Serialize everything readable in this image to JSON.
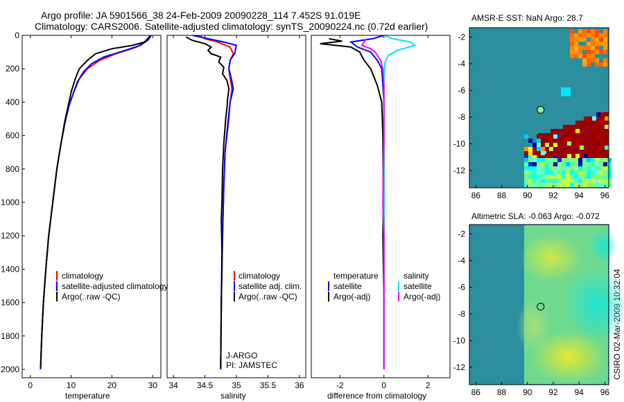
{
  "header": {
    "line1": "Argo profile: JA 5901566_38 24-Feb-2009 20090228_114 7.452S 91.019E",
    "line2": "Climatology: CARS2006. Satellite-adjusted climatology: synTS_20090224.nc (0.72d earlier)"
  },
  "footer_credit": "CSIRO 02-Mar-2009 10:32:04",
  "colors": {
    "climatology": "#ff0000",
    "satellite": "#0000ff",
    "argo": "#000000",
    "sal_satellite": "#00e5ee",
    "sal_argo": "#ff00ff",
    "map_bg": "#2b8fa0"
  },
  "chart_data": [
    {
      "id": "temperature",
      "type": "line",
      "xlabel": "temperature",
      "xlim": [
        -2,
        32
      ],
      "ylim": [
        2050,
        0
      ],
      "xticks": [
        0,
        10,
        20,
        30
      ],
      "yticks": [
        0,
        200,
        400,
        600,
        800,
        1000,
        1200,
        1400,
        1600,
        1800,
        2000
      ],
      "legend": [
        "climatology",
        "satellite-adjusted climatology",
        "Argo(..raw -QC)"
      ],
      "series": [
        {
          "name": "climatology",
          "color": "#ff0000",
          "points": [
            [
              29.5,
              0
            ],
            [
              28.8,
              30
            ],
            [
              26,
              70
            ],
            [
              21,
              110
            ],
            [
              17,
              150
            ],
            [
              14,
              200
            ],
            [
              12,
              260
            ],
            [
              10.5,
              350
            ],
            [
              9.5,
              420
            ],
            [
              8.5,
              520
            ],
            [
              7.5,
              650
            ],
            [
              6.5,
              800
            ],
            [
              5.5,
              1000
            ],
            [
              4.5,
              1200
            ],
            [
              3.8,
              1400
            ],
            [
              3.2,
              1600
            ],
            [
              2.8,
              1800
            ],
            [
              2.5,
              2000
            ]
          ]
        },
        {
          "name": "satellite-adjusted climatology",
          "color": "#0000ff",
          "points": [
            [
              29.6,
              0
            ],
            [
              29,
              25
            ],
            [
              27,
              60
            ],
            [
              22,
              100
            ],
            [
              18,
              130
            ],
            [
              15,
              170
            ],
            [
              13,
              220
            ],
            [
              11.5,
              280
            ],
            [
              10.5,
              350
            ],
            [
              9.5,
              420
            ],
            [
              8.5,
              520
            ],
            [
              7.5,
              650
            ],
            [
              6.5,
              800
            ],
            [
              5.5,
              1000
            ],
            [
              4.5,
              1200
            ],
            [
              3.8,
              1400
            ],
            [
              3.2,
              1600
            ],
            [
              2.8,
              1800
            ],
            [
              2.5,
              2000
            ]
          ]
        },
        {
          "name": "Argo(..raw -QC)",
          "color": "#000000",
          "points": [
            [
              29.3,
              5
            ],
            [
              28,
              40
            ],
            [
              25,
              60
            ],
            [
              20,
              80
            ],
            [
              16,
              110
            ],
            [
              14,
              150
            ],
            [
              12,
              200
            ],
            [
              11,
              260
            ],
            [
              10,
              340
            ],
            [
              9.3,
              420
            ],
            [
              8.4,
              520
            ],
            [
              7.5,
              650
            ],
            [
              6.5,
              800
            ],
            [
              5.5,
              1000
            ],
            [
              4.5,
              1200
            ],
            [
              3.8,
              1400
            ],
            [
              3.2,
              1600
            ],
            [
              2.8,
              1800
            ],
            [
              2.5,
              1990
            ]
          ]
        }
      ]
    },
    {
      "id": "salinity",
      "type": "line",
      "xlabel": "salinity",
      "xlim": [
        33.9,
        36.1
      ],
      "ylim": [
        2050,
        0
      ],
      "xticks": [
        34,
        34.5,
        35,
        35.5,
        36
      ],
      "legend": [
        "climatology",
        "satellite adj. clim.",
        "Argo(..raw -QC)"
      ],
      "annotations": [
        "J-ARGO",
        "PI: JAMSTEC"
      ],
      "series": [
        {
          "name": "climatology",
          "color": "#ff0000",
          "points": [
            [
              34.4,
              0
            ],
            [
              34.5,
              20
            ],
            [
              34.7,
              40
            ],
            [
              34.9,
              70
            ],
            [
              34.95,
              110
            ],
            [
              34.9,
              150
            ],
            [
              34.88,
              200
            ],
            [
              34.9,
              260
            ],
            [
              34.93,
              320
            ],
            [
              34.9,
              400
            ],
            [
              34.88,
              500
            ],
            [
              34.82,
              700
            ],
            [
              34.8,
              900
            ],
            [
              34.78,
              1200
            ],
            [
              34.76,
              1600
            ],
            [
              34.75,
              2000
            ]
          ]
        },
        {
          "name": "satellite adj. clim.",
          "color": "#0000ff",
          "points": [
            [
              34.3,
              0
            ],
            [
              34.55,
              20
            ],
            [
              34.8,
              40
            ],
            [
              35.0,
              60
            ],
            [
              34.97,
              110
            ],
            [
              34.9,
              150
            ],
            [
              34.88,
              200
            ],
            [
              34.92,
              260
            ],
            [
              34.95,
              320
            ],
            [
              34.9,
              400
            ],
            [
              34.87,
              500
            ],
            [
              34.82,
              700
            ],
            [
              34.8,
              900
            ],
            [
              34.78,
              1200
            ],
            [
              34.76,
              1600
            ],
            [
              34.75,
              2000
            ]
          ]
        },
        {
          "name": "Argo(..raw -QC)",
          "color": "#000000",
          "points": [
            [
              34.2,
              10
            ],
            [
              34.3,
              30
            ],
            [
              34.5,
              50
            ],
            [
              34.6,
              70
            ],
            [
              34.55,
              90
            ],
            [
              34.6,
              110
            ],
            [
              34.75,
              130
            ],
            [
              34.72,
              160
            ],
            [
              34.8,
              190
            ],
            [
              34.78,
              230
            ],
            [
              34.85,
              270
            ],
            [
              34.88,
              320
            ],
            [
              34.86,
              380
            ],
            [
              34.85,
              430
            ],
            [
              34.83,
              500
            ],
            [
              34.8,
              650
            ],
            [
              34.78,
              800
            ],
            [
              34.77,
              1000
            ],
            [
              34.76,
              1100
            ],
            [
              34.77,
              1300
            ],
            [
              34.76,
              1600
            ],
            [
              34.75,
              1990
            ]
          ]
        }
      ]
    },
    {
      "id": "difference",
      "type": "line",
      "xlabel": "difference from climatology",
      "xlim": [
        -3.3,
        3
      ],
      "ylim": [
        2050,
        0
      ],
      "xticks": [
        -2,
        0,
        2
      ],
      "legend_temperature": {
        "heading": "temperature",
        "items": [
          "satellite",
          "Argo(-adj)"
        ]
      },
      "legend_salinity": {
        "heading": "salinity",
        "items": [
          "satellite",
          "Argo(-adj)"
        ]
      },
      "series": [
        {
          "name": "temperature satellite",
          "color": "#0000ff",
          "points": [
            [
              0,
              0
            ],
            [
              -0.5,
              20
            ],
            [
              -1.5,
              40
            ],
            [
              -1.2,
              70
            ],
            [
              -0.6,
              100
            ],
            [
              -0.3,
              150
            ],
            [
              -0.1,
              200
            ],
            [
              -0.05,
              300
            ],
            [
              0,
              400
            ],
            [
              0,
              600
            ],
            [
              0,
              1000
            ],
            [
              0,
              2000
            ]
          ]
        },
        {
          "name": "temperature Argo(-adj)",
          "color": "#000000",
          "points": [
            [
              -2.5,
              20
            ],
            [
              -1.9,
              35
            ],
            [
              -2.9,
              50
            ],
            [
              -1.5,
              70
            ],
            [
              -1.1,
              100
            ],
            [
              -0.9,
              150
            ],
            [
              -0.6,
              200
            ],
            [
              -0.3,
              300
            ],
            [
              -0.1,
              400
            ],
            [
              -0.05,
              600
            ],
            [
              -0.02,
              1000
            ],
            [
              -0.05,
              1200
            ],
            [
              0,
              1600
            ],
            [
              0,
              2000
            ]
          ]
        },
        {
          "name": "salinity satellite",
          "color": "#00e5ee",
          "points": [
            [
              0,
              0
            ],
            [
              0.4,
              20
            ],
            [
              1.2,
              40
            ],
            [
              1.4,
              60
            ],
            [
              0.6,
              90
            ],
            [
              0.2,
              120
            ],
            [
              0.05,
              160
            ],
            [
              0,
              250
            ],
            [
              0,
              500
            ],
            [
              0,
              1000
            ],
            [
              0,
              2000
            ]
          ]
        },
        {
          "name": "salinity Argo(-adj)",
          "color": "#ff00ff",
          "points": [
            [
              -0.8,
              20
            ],
            [
              -0.9,
              40
            ],
            [
              -1.0,
              60
            ],
            [
              -0.6,
              80
            ],
            [
              -0.4,
              100
            ],
            [
              -0.15,
              150
            ],
            [
              -0.05,
              200
            ],
            [
              0,
              300
            ],
            [
              0,
              600
            ],
            [
              -0.05,
              1000
            ],
            [
              0,
              1200
            ],
            [
              0,
              2000
            ]
          ]
        }
      ]
    },
    {
      "id": "sst_map",
      "type": "heatmap",
      "title": "AMSR-E SST: NaN Argo: 28.7",
      "xlim": [
        85.5,
        96.3
      ],
      "ylim": [
        -13.3,
        -1.3
      ],
      "xticks": [
        86,
        88,
        90,
        92,
        94,
        96
      ],
      "yticks": [
        -2,
        -4,
        -6,
        -8,
        -10,
        -12
      ],
      "marker": {
        "lon": 91.02,
        "lat": -7.45,
        "color": "#90ee90"
      }
    },
    {
      "id": "sla_map",
      "type": "heatmap",
      "title": "Altimetric SLA: -0.063 Argo: -0.072",
      "xlim": [
        85.5,
        96.3
      ],
      "ylim": [
        -13.3,
        -1.3
      ],
      "xticks": [
        86,
        88,
        90,
        92,
        94,
        96
      ],
      "yticks": [
        -2,
        -4,
        -6,
        -8,
        -10,
        -12
      ],
      "marker": {
        "lon": 91.02,
        "lat": -7.45,
        "color": "none"
      }
    }
  ]
}
